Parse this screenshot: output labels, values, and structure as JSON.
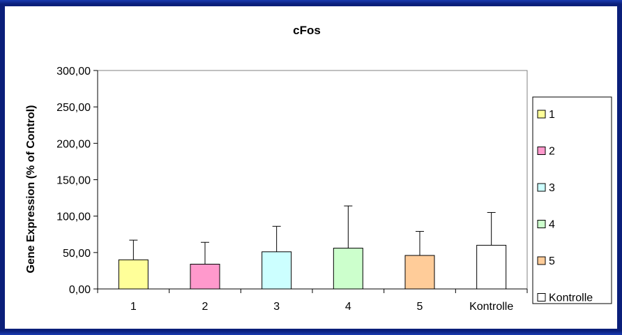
{
  "chart_data": {
    "type": "bar",
    "title": "cFos",
    "xlabel": "",
    "ylabel": "Gene Expression (% of Control)",
    "ylim": [
      0,
      300
    ],
    "yticks": [
      "0,00",
      "50,00",
      "100,00",
      "150,00",
      "200,00",
      "250,00",
      "300,00"
    ],
    "ytick_values": [
      0,
      50,
      100,
      150,
      200,
      250,
      300
    ],
    "categories": [
      "1",
      "2",
      "3",
      "4",
      "5",
      "Kontrolle"
    ],
    "values": [
      40,
      34,
      51,
      56,
      46,
      60
    ],
    "errors": [
      27,
      30,
      35,
      58,
      33,
      45
    ],
    "colors": [
      "#ffff99",
      "#ff99cc",
      "#ccffff",
      "#ccffcc",
      "#ffcc99",
      "#ffffff"
    ],
    "grid": false,
    "legend": {
      "position": "right",
      "entries": [
        "1",
        "2",
        "3",
        "4",
        "5",
        "Kontrolle"
      ]
    }
  }
}
